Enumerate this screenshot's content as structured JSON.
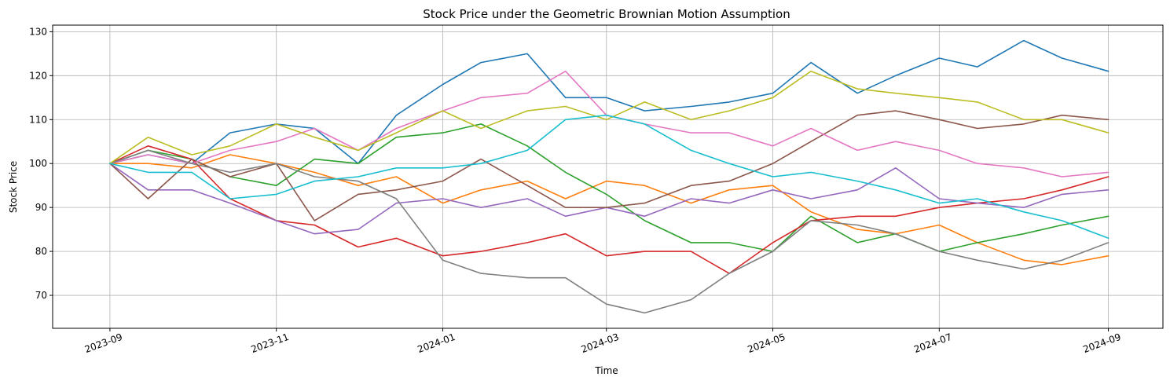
{
  "chart_data": {
    "type": "line",
    "title": "Stock Price under the Geometric Brownian Motion Assumption",
    "xlabel": "Time",
    "ylabel": "Stock Price",
    "x_tick_labels": [
      "2023-09",
      "2023-11",
      "2024-01",
      "2024-03",
      "2024-05",
      "2024-07",
      "2024-09"
    ],
    "y_ticks": [
      70,
      80,
      90,
      100,
      110,
      120,
      130
    ],
    "xlim": [
      "2023-08-11",
      "2024-09-21"
    ],
    "ylim": [
      62.5,
      131.5
    ],
    "grid": true,
    "legend": "none",
    "x_dates": [
      "2023-09-01",
      "2023-09-15",
      "2023-10-01",
      "2023-10-15",
      "2023-11-01",
      "2023-11-15",
      "2023-12-01",
      "2023-12-15",
      "2024-01-01",
      "2024-01-15",
      "2024-02-01",
      "2024-02-15",
      "2024-03-01",
      "2024-03-15",
      "2024-04-01",
      "2024-04-15",
      "2024-05-01",
      "2024-05-15",
      "2024-06-01",
      "2024-06-15",
      "2024-07-01",
      "2024-07-15",
      "2024-08-01",
      "2024-08-15",
      "2024-09-01"
    ],
    "series": [
      {
        "color": "#1f77b4",
        "values": [
          100,
          102,
          100,
          107,
          109,
          108,
          100,
          111,
          118,
          123,
          125,
          115,
          115,
          112,
          113,
          114,
          116,
          123,
          116,
          120,
          124,
          122,
          128,
          124,
          121
        ]
      },
      {
        "color": "#ff7f0e",
        "values": [
          100,
          100,
          99,
          102,
          100,
          98,
          95,
          97,
          91,
          94,
          96,
          92,
          96,
          95,
          91,
          94,
          95,
          89,
          85,
          84,
          86,
          82,
          78,
          77,
          79
        ]
      },
      {
        "color": "#2ca02c",
        "values": [
          100,
          103,
          101,
          97,
          95,
          101,
          100,
          106,
          107,
          109,
          104,
          98,
          93,
          87,
          82,
          82,
          80,
          88,
          82,
          84,
          80,
          82,
          84,
          86,
          88
        ]
      },
      {
        "color": "#d62728",
        "values": [
          100,
          104,
          101,
          92,
          87,
          86,
          81,
          83,
          79,
          80,
          82,
          84,
          79,
          80,
          80,
          75,
          82,
          87,
          88,
          88,
          90,
          91,
          92,
          94,
          97
        ]
      },
      {
        "color": "#9467bd",
        "values": [
          100,
          94,
          94,
          91,
          87,
          84,
          85,
          91,
          92,
          90,
          92,
          88,
          90,
          88,
          92,
          91,
          94,
          92,
          94,
          99,
          92,
          91,
          90,
          93,
          94
        ]
      },
      {
        "color": "#8c564b",
        "values": [
          100,
          92,
          101,
          97,
          100,
          87,
          93,
          94,
          96,
          101,
          95,
          90,
          90,
          91,
          95,
          96,
          100,
          105,
          111,
          112,
          110,
          108,
          109,
          111,
          110
        ]
      },
      {
        "color": "#e377c2",
        "values": [
          100,
          102,
          100,
          103,
          105,
          108,
          103,
          108,
          112,
          115,
          116,
          121,
          111,
          109,
          107,
          107,
          104,
          108,
          103,
          105,
          103,
          100,
          99,
          97,
          98
        ]
      },
      {
        "color": "#7f7f7f",
        "values": [
          100,
          103,
          100,
          98,
          100,
          97,
          96,
          92,
          78,
          75,
          74,
          74,
          68,
          66,
          69,
          75,
          80,
          87,
          86,
          84,
          80,
          78,
          76,
          78,
          82
        ]
      },
      {
        "color": "#bcbd22",
        "values": [
          100,
          106,
          102,
          104,
          109,
          106,
          103,
          107,
          112,
          108,
          112,
          113,
          110,
          114,
          110,
          112,
          115,
          121,
          117,
          116,
          115,
          114,
          110,
          110,
          107
        ]
      },
      {
        "color": "#17becf",
        "values": [
          100,
          98,
          98,
          92,
          93,
          96,
          97,
          99,
          99,
          100,
          103,
          110,
          111,
          109,
          103,
          100,
          97,
          98,
          96,
          94,
          91,
          92,
          89,
          87,
          83
        ]
      }
    ]
  }
}
